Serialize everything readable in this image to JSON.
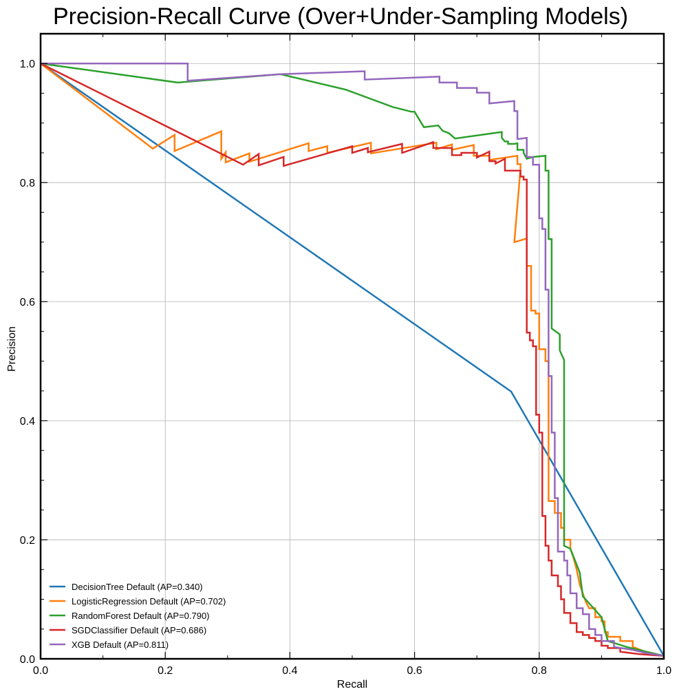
{
  "chart_data": {
    "type": "line",
    "title": "Precision-Recall Curve (Over+Under-Sampling Models)",
    "xlabel": "Recall",
    "ylabel": "Precision",
    "xlim": [
      0,
      1
    ],
    "ylim": [
      0,
      1.05
    ],
    "xticks": [
      0.0,
      0.2,
      0.4,
      0.6,
      0.8,
      1.0
    ],
    "yticks": [
      0.0,
      0.2,
      0.4,
      0.6,
      0.8,
      1.0
    ],
    "xtick_labels": [
      "0.0",
      "0.2",
      "0.4",
      "0.6",
      "0.8",
      "1.0"
    ],
    "ytick_labels": [
      "0.0",
      "0.2",
      "0.4",
      "0.6",
      "0.8",
      "1.0"
    ],
    "grid": true,
    "legend_position": "lower-left",
    "series": [
      {
        "name": "DecisionTree Default (AP=0.340)",
        "color": "#1f77b4",
        "step": false,
        "points": [
          [
            0.0,
            1.0
          ],
          [
            0.755,
            0.449
          ],
          [
            1.0,
            0.005
          ]
        ]
      },
      {
        "name": "LogisticRegression Default (AP=0.702)",
        "color": "#ff7f0e",
        "step": true,
        "points": [
          [
            0.0,
            1.0
          ],
          [
            0.18,
            0.857
          ],
          [
            0.215,
            0.88
          ],
          [
            0.215,
            0.853
          ],
          [
            0.29,
            0.886
          ],
          [
            0.29,
            0.84
          ],
          [
            0.297,
            0.851
          ],
          [
            0.297,
            0.834
          ],
          [
            0.335,
            0.849
          ],
          [
            0.335,
            0.835
          ],
          [
            0.43,
            0.866
          ],
          [
            0.43,
            0.853
          ],
          [
            0.46,
            0.861
          ],
          [
            0.46,
            0.85
          ],
          [
            0.53,
            0.867
          ],
          [
            0.53,
            0.849
          ],
          [
            0.635,
            0.867
          ],
          [
            0.635,
            0.856
          ],
          [
            0.66,
            0.864
          ],
          [
            0.66,
            0.855
          ],
          [
            0.695,
            0.863
          ],
          [
            0.695,
            0.845
          ],
          [
            0.72,
            0.845
          ],
          [
            0.72,
            0.838
          ],
          [
            0.765,
            0.845
          ],
          [
            0.765,
            0.831
          ],
          [
            0.77,
            0.831
          ],
          [
            0.77,
            0.823
          ],
          [
            0.76,
            0.7
          ],
          [
            0.78,
            0.706
          ],
          [
            0.78,
            0.66
          ],
          [
            0.787,
            0.66
          ],
          [
            0.787,
            0.585
          ],
          [
            0.794,
            0.585
          ],
          [
            0.794,
            0.58
          ],
          [
            0.8,
            0.58
          ],
          [
            0.8,
            0.52
          ],
          [
            0.81,
            0.52
          ],
          [
            0.81,
            0.5
          ],
          [
            0.815,
            0.5
          ],
          [
            0.815,
            0.265
          ],
          [
            0.825,
            0.265
          ],
          [
            0.825,
            0.245
          ],
          [
            0.835,
            0.245
          ],
          [
            0.835,
            0.22
          ],
          [
            0.84,
            0.22
          ],
          [
            0.84,
            0.2
          ],
          [
            0.85,
            0.2
          ],
          [
            0.85,
            0.185
          ],
          [
            0.855,
            0.17
          ],
          [
            0.86,
            0.15
          ],
          [
            0.865,
            0.125
          ],
          [
            0.87,
            0.11
          ],
          [
            0.875,
            0.095
          ],
          [
            0.88,
            0.085
          ],
          [
            0.89,
            0.085
          ],
          [
            0.89,
            0.07
          ],
          [
            0.9,
            0.07
          ],
          [
            0.9,
            0.063
          ],
          [
            0.905,
            0.063
          ],
          [
            0.905,
            0.045
          ],
          [
            0.91,
            0.045
          ],
          [
            0.91,
            0.037
          ],
          [
            0.93,
            0.037
          ],
          [
            0.93,
            0.03
          ],
          [
            0.95,
            0.03
          ],
          [
            0.95,
            0.02
          ],
          [
            0.97,
            0.012
          ],
          [
            1.0,
            0.005
          ]
        ]
      },
      {
        "name": "RandomForest Default (AP=0.790)",
        "color": "#2ca02c",
        "step": false,
        "points": [
          [
            0.0,
            1.0
          ],
          [
            0.22,
            0.968
          ],
          [
            0.385,
            0.982
          ],
          [
            0.49,
            0.956
          ],
          [
            0.565,
            0.927
          ],
          [
            0.595,
            0.919
          ],
          [
            0.6,
            0.919
          ],
          [
            0.615,
            0.893
          ],
          [
            0.638,
            0.896
          ],
          [
            0.645,
            0.887
          ],
          [
            0.655,
            0.883
          ],
          [
            0.665,
            0.874
          ],
          [
            0.74,
            0.885
          ],
          [
            0.74,
            0.875
          ],
          [
            0.745,
            0.869
          ],
          [
            0.75,
            0.869
          ],
          [
            0.75,
            0.865
          ],
          [
            0.76,
            0.865
          ],
          [
            0.765,
            0.866
          ],
          [
            0.765,
            0.855
          ],
          [
            0.775,
            0.855
          ],
          [
            0.775,
            0.85
          ],
          [
            0.78,
            0.84
          ],
          [
            0.79,
            0.843
          ],
          [
            0.81,
            0.845
          ],
          [
            0.81,
            0.82
          ],
          [
            0.815,
            0.82
          ],
          [
            0.815,
            0.705
          ],
          [
            0.82,
            0.705
          ],
          [
            0.82,
            0.555
          ],
          [
            0.833,
            0.545
          ],
          [
            0.833,
            0.518
          ],
          [
            0.84,
            0.502
          ],
          [
            0.84,
            0.19
          ],
          [
            0.85,
            0.185
          ],
          [
            0.865,
            0.145
          ],
          [
            0.87,
            0.105
          ],
          [
            0.9,
            0.07
          ],
          [
            0.91,
            0.03
          ],
          [
            0.94,
            0.02
          ],
          [
            1.0,
            0.005
          ]
        ]
      },
      {
        "name": "SGDClassifier Default (AP=0.686)",
        "color": "#d62728",
        "step": true,
        "points": [
          [
            0.0,
            1.0
          ],
          [
            0.325,
            0.83
          ],
          [
            0.35,
            0.848
          ],
          [
            0.35,
            0.829
          ],
          [
            0.39,
            0.843
          ],
          [
            0.39,
            0.828
          ],
          [
            0.5,
            0.861
          ],
          [
            0.5,
            0.85
          ],
          [
            0.525,
            0.858
          ],
          [
            0.525,
            0.851
          ],
          [
            0.58,
            0.865
          ],
          [
            0.58,
            0.85
          ],
          [
            0.63,
            0.868
          ],
          [
            0.63,
            0.858
          ],
          [
            0.66,
            0.858
          ],
          [
            0.66,
            0.846
          ],
          [
            0.675,
            0.846
          ],
          [
            0.675,
            0.85
          ],
          [
            0.7,
            0.85
          ],
          [
            0.7,
            0.842
          ],
          [
            0.72,
            0.852
          ],
          [
            0.72,
            0.836
          ],
          [
            0.73,
            0.836
          ],
          [
            0.73,
            0.832
          ],
          [
            0.745,
            0.84
          ],
          [
            0.745,
            0.82
          ],
          [
            0.77,
            0.82
          ],
          [
            0.77,
            0.81
          ],
          [
            0.775,
            0.81
          ],
          [
            0.775,
            0.805
          ],
          [
            0.78,
            0.805
          ],
          [
            0.78,
            0.548
          ],
          [
            0.785,
            0.548
          ],
          [
            0.785,
            0.535
          ],
          [
            0.79,
            0.535
          ],
          [
            0.79,
            0.525
          ],
          [
            0.795,
            0.525
          ],
          [
            0.795,
            0.41
          ],
          [
            0.8,
            0.41
          ],
          [
            0.8,
            0.38
          ],
          [
            0.805,
            0.38
          ],
          [
            0.805,
            0.24
          ],
          [
            0.81,
            0.24
          ],
          [
            0.81,
            0.19
          ],
          [
            0.815,
            0.19
          ],
          [
            0.815,
            0.165
          ],
          [
            0.82,
            0.165
          ],
          [
            0.82,
            0.14
          ],
          [
            0.83,
            0.14
          ],
          [
            0.83,
            0.122
          ],
          [
            0.835,
            0.122
          ],
          [
            0.835,
            0.1
          ],
          [
            0.84,
            0.1
          ],
          [
            0.84,
            0.077
          ],
          [
            0.85,
            0.077
          ],
          [
            0.85,
            0.06
          ],
          [
            0.86,
            0.06
          ],
          [
            0.86,
            0.045
          ],
          [
            0.87,
            0.045
          ],
          [
            0.87,
            0.04
          ],
          [
            0.88,
            0.04
          ],
          [
            0.88,
            0.035
          ],
          [
            0.89,
            0.035
          ],
          [
            0.89,
            0.03
          ],
          [
            0.9,
            0.03
          ],
          [
            0.9,
            0.022
          ],
          [
            0.91,
            0.022
          ],
          [
            0.91,
            0.018
          ],
          [
            0.93,
            0.018
          ],
          [
            0.93,
            0.012
          ],
          [
            0.96,
            0.008
          ],
          [
            1.0,
            0.005
          ]
        ]
      },
      {
        "name": "XGB Default (AP=0.811)",
        "color": "#9467bd",
        "step": true,
        "points": [
          [
            0.0,
            1.0
          ],
          [
            0.236,
            1.0
          ],
          [
            0.236,
            0.971
          ],
          [
            0.385,
            0.982
          ],
          [
            0.52,
            0.987
          ],
          [
            0.52,
            0.973
          ],
          [
            0.64,
            0.978
          ],
          [
            0.64,
            0.968
          ],
          [
            0.668,
            0.968
          ],
          [
            0.668,
            0.959
          ],
          [
            0.7,
            0.959
          ],
          [
            0.7,
            0.951
          ],
          [
            0.72,
            0.951
          ],
          [
            0.72,
            0.933
          ],
          [
            0.76,
            0.937
          ],
          [
            0.76,
            0.92
          ],
          [
            0.765,
            0.92
          ],
          [
            0.765,
            0.873
          ],
          [
            0.78,
            0.875
          ],
          [
            0.78,
            0.843
          ],
          [
            0.79,
            0.843
          ],
          [
            0.79,
            0.83
          ],
          [
            0.8,
            0.83
          ],
          [
            0.8,
            0.74
          ],
          [
            0.805,
            0.74
          ],
          [
            0.805,
            0.722
          ],
          [
            0.81,
            0.722
          ],
          [
            0.81,
            0.62
          ],
          [
            0.815,
            0.62
          ],
          [
            0.815,
            0.475
          ],
          [
            0.82,
            0.475
          ],
          [
            0.82,
            0.38
          ],
          [
            0.825,
            0.38
          ],
          [
            0.825,
            0.27
          ],
          [
            0.83,
            0.27
          ],
          [
            0.83,
            0.18
          ],
          [
            0.84,
            0.18
          ],
          [
            0.84,
            0.165
          ],
          [
            0.845,
            0.165
          ],
          [
            0.845,
            0.14
          ],
          [
            0.85,
            0.14
          ],
          [
            0.85,
            0.11
          ],
          [
            0.86,
            0.11
          ],
          [
            0.86,
            0.085
          ],
          [
            0.87,
            0.085
          ],
          [
            0.87,
            0.075
          ],
          [
            0.88,
            0.075
          ],
          [
            0.88,
            0.05
          ],
          [
            0.89,
            0.05
          ],
          [
            0.89,
            0.04
          ],
          [
            0.9,
            0.04
          ],
          [
            0.9,
            0.03
          ],
          [
            0.92,
            0.03
          ],
          [
            0.92,
            0.02
          ],
          [
            0.95,
            0.015
          ],
          [
            0.97,
            0.01
          ],
          [
            1.0,
            0.005
          ]
        ]
      }
    ]
  }
}
